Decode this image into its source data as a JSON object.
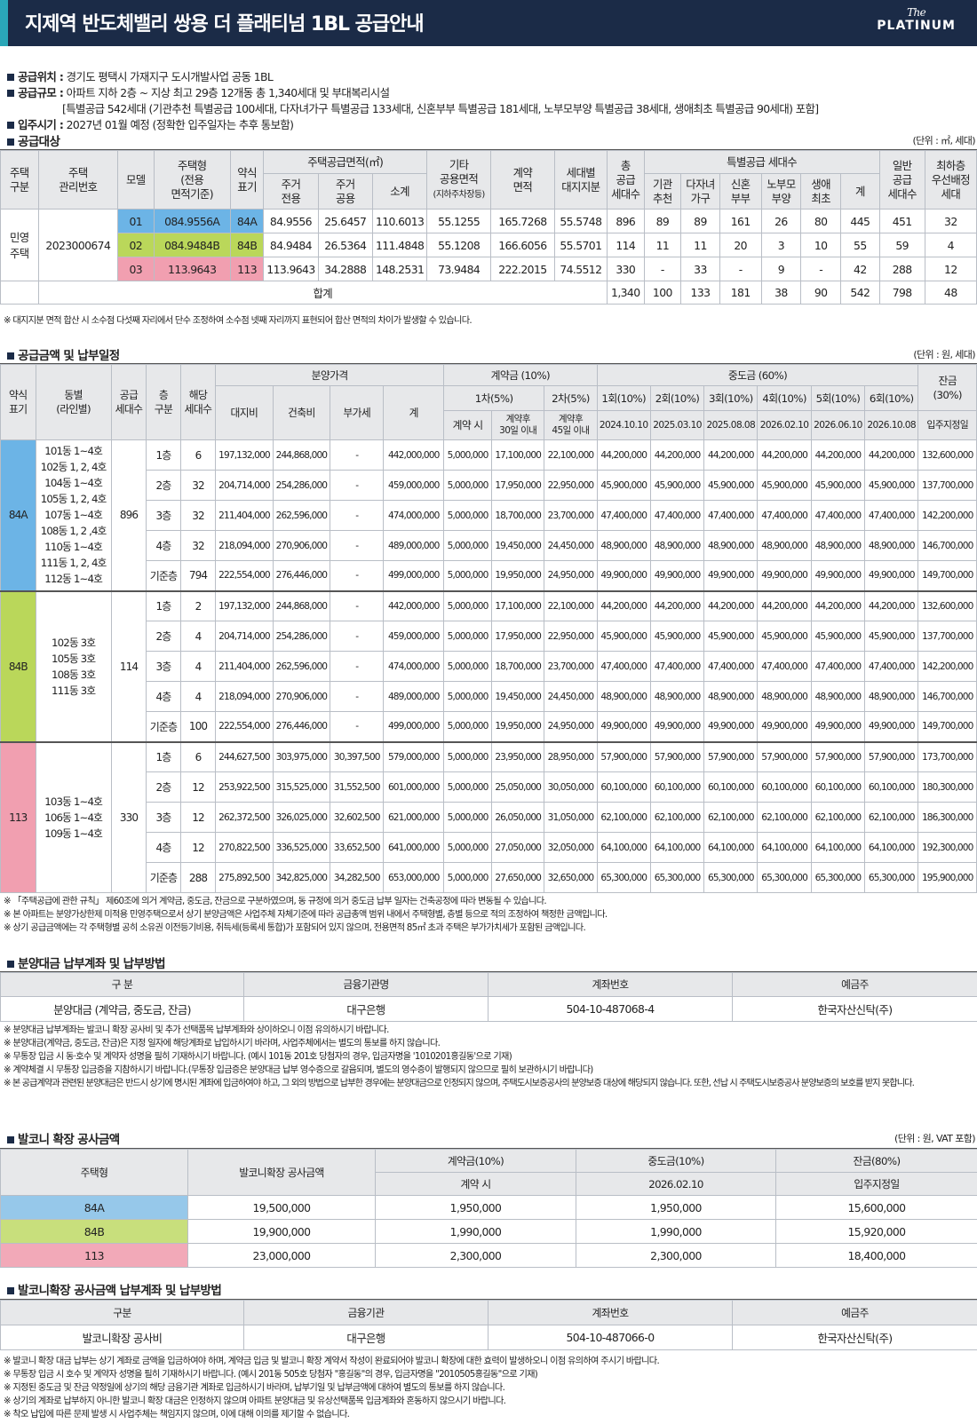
{
  "header": {
    "title": "지제역 반도체밸리 쌍용 더 플래티넘 1BL 공급안내",
    "logo_the": "The",
    "logo_platinum": "PLATINUM"
  },
  "info": {
    "location_label": "공급위치 :",
    "location": "경기도 평택시 가재지구 도시개발사업 공동 1BL",
    "scale_label": "공급규모 :",
    "scale": "아파트 지하 2층 ~ 지상 최고 29층 12개동 총 1,340세대 및 부대복리시설",
    "scale_detail": "[특별공급 542세대 (기관추천 특별공급 100세대, 다자녀가구 특별공급 133세대, 신혼부부 특별공급 181세대, 노부모부양 특별공급 38세대, 생애최초 특별공급 90세대) 포함]",
    "movein_label": "입주시기 :",
    "movein": "2027년 01월 예정 (정확한 입주일자는 추후 통보함)"
  },
  "supply": {
    "title": "공급대상",
    "unit": "(단위 : ㎡, 세대)",
    "headers": {
      "type": "주택\n구분",
      "mgmt": "주택\n관리번호",
      "model": "모델",
      "htype": "주택형\n(전용\n면적기준)",
      "abbr": "약식\n표기",
      "area_group": "주택공급면적(㎡)",
      "area_exclusive": "주거\n전용",
      "area_common": "주거\n공용",
      "area_sub": "소계",
      "other": "기타\n공용면적",
      "other_sub": "(지하주차장등)",
      "contract_area": "계약\n면적",
      "land": "세대별\n대지지분",
      "total": "총\n공급\n세대수",
      "special_group": "특별공급 세대수",
      "sp_inst": "기관\n추천",
      "sp_multi": "다자녀\n가구",
      "sp_newly": "신혼\n부부",
      "sp_parent": "노부모\n부양",
      "sp_first": "생애\n최초",
      "sp_sum": "계",
      "general": "일반\n공급\n세대수",
      "lowest": "최하층\n우선배정\n세대"
    },
    "house_type": "민영\n주택",
    "mgmt_no": "2023000674",
    "rows": [
      {
        "model": "01",
        "htype": "084.9556A",
        "abbr": "84A",
        "ex": "84.9556",
        "cm": "25.6457",
        "sub": "110.6013",
        "other": "55.1255",
        "contract": "165.7268",
        "land": "55.5748",
        "total": "896",
        "inst": "89",
        "multi": "89",
        "newly": "161",
        "parent": "26",
        "first": "80",
        "spsum": "445",
        "general": "451",
        "lowest": "32"
      },
      {
        "model": "02",
        "htype": "084.9484B",
        "abbr": "84B",
        "ex": "84.9484",
        "cm": "26.5364",
        "sub": "111.4848",
        "other": "55.1208",
        "contract": "166.6056",
        "land": "55.5701",
        "total": "114",
        "inst": "11",
        "multi": "11",
        "newly": "20",
        "parent": "3",
        "first": "10",
        "spsum": "55",
        "general": "59",
        "lowest": "4"
      },
      {
        "model": "03",
        "htype": "113.9643",
        "abbr": "113",
        "ex": "113.9643",
        "cm": "34.2888",
        "sub": "148.2531",
        "other": "73.9484",
        "contract": "222.2015",
        "land": "74.5512",
        "total": "330",
        "inst": "-",
        "multi": "33",
        "newly": "-",
        "parent": "9",
        "first": "-",
        "spsum": "42",
        "general": "288",
        "lowest": "12"
      }
    ],
    "sum_label": "합계",
    "sum": {
      "total": "1,340",
      "inst": "100",
      "multi": "133",
      "newly": "181",
      "parent": "38",
      "first": "90",
      "spsum": "542",
      "general": "798",
      "lowest": "48"
    },
    "note": "※ 대지지분 면적 합산 시 소수점 다섯째 자리에서 단수 조정하여 소수점 넷째 자리까지 표현되어 합산 면적의 차이가 발생할 수 있습니다."
  },
  "price": {
    "title": "공급금액 및 납부일정",
    "unit": "(단위 : 원, 세대)",
    "headers": {
      "abbr": "약식\n표기",
      "dong": "동별\n(라인별)",
      "count": "공급\n세대수",
      "floor": "층\n구분",
      "units": "해당\n세대수",
      "sale": "분양가격",
      "land": "대지비",
      "build": "건축비",
      "vat": "부가세",
      "sum": "계",
      "deposit": "계약금 (10%)",
      "dep1": "1차(5%)",
      "dep2": "2차(5%)",
      "dep1a": "계약 시",
      "dep1b": "계약후\n30일 이내",
      "dep2a": "계약후\n45일 이내",
      "mid": "중도금 (60%)",
      "m1": "1회(10%)",
      "m2": "2회(10%)",
      "m3": "3회(10%)",
      "m4": "4회(10%)",
      "m5": "5회(10%)",
      "m6": "6회(10%)",
      "d1": "2024.10.10",
      "d2": "2025.03.10",
      "d3": "2025.08.08",
      "d4": "2026.02.10",
      "d5": "2026.06.10",
      "d6": "2026.10.08",
      "bal": "잔금\n(30%)",
      "bal_date": "입주지정일"
    },
    "groups": [
      {
        "abbr": "84A",
        "dong": "101동 1~4호\n102동 1, 2, 4호\n104동 1~4호\n105동 1, 2, 4호\n107동 1~4호\n108동 1, 2 ,4호\n110동 1~4호\n111동 1, 2, 4호\n112동 1~4호",
        "count": "896",
        "rows": [
          [
            "1층",
            "6",
            "197,132,000",
            "244,868,000",
            "-",
            "442,000,000",
            "5,000,000",
            "17,100,000",
            "22,100,000",
            "44,200,000",
            "44,200,000",
            "44,200,000",
            "44,200,000",
            "44,200,000",
            "44,200,000",
            "132,600,000"
          ],
          [
            "2층",
            "32",
            "204,714,000",
            "254,286,000",
            "-",
            "459,000,000",
            "5,000,000",
            "17,950,000",
            "22,950,000",
            "45,900,000",
            "45,900,000",
            "45,900,000",
            "45,900,000",
            "45,900,000",
            "45,900,000",
            "137,700,000"
          ],
          [
            "3층",
            "32",
            "211,404,000",
            "262,596,000",
            "-",
            "474,000,000",
            "5,000,000",
            "18,700,000",
            "23,700,000",
            "47,400,000",
            "47,400,000",
            "47,400,000",
            "47,400,000",
            "47,400,000",
            "47,400,000",
            "142,200,000"
          ],
          [
            "4층",
            "32",
            "218,094,000",
            "270,906,000",
            "-",
            "489,000,000",
            "5,000,000",
            "19,450,000",
            "24,450,000",
            "48,900,000",
            "48,900,000",
            "48,900,000",
            "48,900,000",
            "48,900,000",
            "48,900,000",
            "146,700,000"
          ],
          [
            "기준층",
            "794",
            "222,554,000",
            "276,446,000",
            "-",
            "499,000,000",
            "5,000,000",
            "19,950,000",
            "24,950,000",
            "49,900,000",
            "49,900,000",
            "49,900,000",
            "49,900,000",
            "49,900,000",
            "49,900,000",
            "149,700,000"
          ]
        ]
      },
      {
        "abbr": "84B",
        "dong": "102동 3호\n105동 3호\n108동 3호\n111동 3호",
        "count": "114",
        "rows": [
          [
            "1층",
            "2",
            "197,132,000",
            "244,868,000",
            "-",
            "442,000,000",
            "5,000,000",
            "17,100,000",
            "22,100,000",
            "44,200,000",
            "44,200,000",
            "44,200,000",
            "44,200,000",
            "44,200,000",
            "44,200,000",
            "132,600,000"
          ],
          [
            "2층",
            "4",
            "204,714,000",
            "254,286,000",
            "-",
            "459,000,000",
            "5,000,000",
            "17,950,000",
            "22,950,000",
            "45,900,000",
            "45,900,000",
            "45,900,000",
            "45,900,000",
            "45,900,000",
            "45,900,000",
            "137,700,000"
          ],
          [
            "3층",
            "4",
            "211,404,000",
            "262,596,000",
            "-",
            "474,000,000",
            "5,000,000",
            "18,700,000",
            "23,700,000",
            "47,400,000",
            "47,400,000",
            "47,400,000",
            "47,400,000",
            "47,400,000",
            "47,400,000",
            "142,200,000"
          ],
          [
            "4층",
            "4",
            "218,094,000",
            "270,906,000",
            "-",
            "489,000,000",
            "5,000,000",
            "19,450,000",
            "24,450,000",
            "48,900,000",
            "48,900,000",
            "48,900,000",
            "48,900,000",
            "48,900,000",
            "48,900,000",
            "146,700,000"
          ],
          [
            "기준층",
            "100",
            "222,554,000",
            "276,446,000",
            "-",
            "499,000,000",
            "5,000,000",
            "19,950,000",
            "24,950,000",
            "49,900,000",
            "49,900,000",
            "49,900,000",
            "49,900,000",
            "49,900,000",
            "49,900,000",
            "149,700,000"
          ]
        ]
      },
      {
        "abbr": "113",
        "dong": "103동 1~4호\n106동 1~4호\n109동 1~4호",
        "count": "330",
        "rows": [
          [
            "1층",
            "6",
            "244,627,500",
            "303,975,000",
            "30,397,500",
            "579,000,000",
            "5,000,000",
            "23,950,000",
            "28,950,000",
            "57,900,000",
            "57,900,000",
            "57,900,000",
            "57,900,000",
            "57,900,000",
            "57,900,000",
            "173,700,000"
          ],
          [
            "2층",
            "12",
            "253,922,500",
            "315,525,000",
            "31,552,500",
            "601,000,000",
            "5,000,000",
            "25,050,000",
            "30,050,000",
            "60,100,000",
            "60,100,000",
            "60,100,000",
            "60,100,000",
            "60,100,000",
            "60,100,000",
            "180,300,000"
          ],
          [
            "3층",
            "12",
            "262,372,500",
            "326,025,000",
            "32,602,500",
            "621,000,000",
            "5,000,000",
            "26,050,000",
            "31,050,000",
            "62,100,000",
            "62,100,000",
            "62,100,000",
            "62,100,000",
            "62,100,000",
            "62,100,000",
            "186,300,000"
          ],
          [
            "4층",
            "12",
            "270,822,500",
            "336,525,000",
            "33,652,500",
            "641,000,000",
            "5,000,000",
            "27,050,000",
            "32,050,000",
            "64,100,000",
            "64,100,000",
            "64,100,000",
            "64,100,000",
            "64,100,000",
            "64,100,000",
            "192,300,000"
          ],
          [
            "기준층",
            "288",
            "275,892,500",
            "342,825,000",
            "34,282,500",
            "653,000,000",
            "5,000,000",
            "27,650,000",
            "32,650,000",
            "65,300,000",
            "65,300,000",
            "65,300,000",
            "65,300,000",
            "65,300,000",
            "65,300,000",
            "195,900,000"
          ]
        ]
      }
    ],
    "notes": [
      "※ 「주택공급에 관한 규칙」 제60조에 의거 계약금, 중도금, 잔금으로 구분하였으며, 동 규정에 의거 중도금 납부 일자는 건축공정에 따라 변동될 수 있습니다.",
      "※ 본 아파트는 분양가상한제 미적용 민영주택으로서 상기 분양금액은 사업주체 자체기준에 따라 공급총액 범위 내에서 주택형별, 층별 등으로 적의 조정하여 책정한 금액입니다.",
      "※ 상기 공급금액에는 각 주택형별 공히 소유권 이전등기비용, 취득세(등록세 통합)가 포함되어 있지 않으며, 전용면적 85㎡ 초과 주택은 부가가치세가 포함된 금액입니다."
    ]
  },
  "account": {
    "title": "분양대금 납부계좌 및 납부방법",
    "headers": [
      "구 분",
      "금융기관명",
      "계좌번호",
      "예금주"
    ],
    "row": [
      "분양대금 (계약금, 중도금, 잔금)",
      "대구은행",
      "504-10-487068-4",
      "한국자산신탁(주)"
    ],
    "notes": [
      "※ 분양대금 납부계좌는 발코니 확장 공사비 및 추가 선택품목 납부계좌와 상이하오니 이점 유의하시기 바랍니다.",
      "※ 분양대금(계약금, 중도금, 잔금)은 지정 일자에 해당계좌로 납입하시기 바라며, 사업주체에서는 별도의 통보를 하지 않습니다.",
      "※ 무통장 입금 시 동·호수 및 계약자 성명을 필히 기재하시기 바랍니다. (예시 101동 201호 당첨자의 경우, 입금자명을 '1010201홍길동'으로 기재)",
      "※ 계약체결 시 무통장 입금증을 지참하시기 바랍니다.(무통장 입금증은 분양대금 납부 영수증으로 갈음되며, 별도의 영수증이 발행되지 않으므로 필히 보관하시기 바랍니다)",
      "※ 본 공급계약과 관련된 분양대금은 반드시 상기에 명시된 계좌에 입금하여야 하고, 그 외의 방법으로 납부한 경우에는 분양대금으로 인정되지 않으며, 주택도시보증공사의 분양보증 대상에 해당되지 않습니다. 또한, 선납 시 주택도시보증공사 분양보증의 보호를 받지 못합니다."
    ]
  },
  "balcony": {
    "title": "발코니 확장 공사금액",
    "unit": "(단위 : 원, VAT 포함)",
    "headers": {
      "type": "주택형",
      "cost": "발코니확장 공사금액",
      "dep": "계약금(10%)",
      "dep_sub": "계약 시",
      "mid": "중도금(10%)",
      "mid_sub": "2026.02.10",
      "bal": "잔금(80%)",
      "bal_sub": "입주지정일"
    },
    "rows": [
      {
        "type": "84A",
        "cost": "19,500,000",
        "dep": "1,950,000",
        "mid": "1,950,000",
        "bal": "15,600,000"
      },
      {
        "type": "84B",
        "cost": "19,900,000",
        "dep": "1,990,000",
        "mid": "1,990,000",
        "bal": "15,920,000"
      },
      {
        "type": "113",
        "cost": "23,000,000",
        "dep": "2,300,000",
        "mid": "2,300,000",
        "bal": "18,400,000"
      }
    ]
  },
  "balcony_account": {
    "title": "발코니확장 공사금액 납부계좌 및 납부방법",
    "headers": [
      "구분",
      "금융기관",
      "계좌번호",
      "예금주"
    ],
    "row": [
      "발코니확장 공사비",
      "대구은행",
      "504-10-487066-0",
      "한국자산신탁(주)"
    ],
    "notes": [
      "※ 발코니 확장 대금 납부는 상기 계좌로 금액을 입금하여야 하며, 계약금 입금 및 발코니 확장 계약서 작성이 완료되어야 발코니 확장에 대한 효력이 발생하오니 이점 유의하여 주시기 바랍니다.",
      "※ 무통장 입금 시 호수 및 계약자 성명을 필히 기재하시기 바랍니다. (예시 201동 505호 당첨자 \"홍길동\"의 경우, 입금자명을 \"2010505홍길동\"으로 기재)",
      "※ 지정된 중도금 및 잔금 약정일에 상기의 해당 금융기관 계좌로 입금하시기 바라며, 납부기일 및 납부금액에 대하여 별도의 통보를 하지 않습니다.",
      "※ 상기의 계좌로 납부하지 아니한 발코니 확장 대금은 인정하지 않으며 아파트 분양대금 및 유상선택품목 입금계좌와 혼동하지 않으시기 바랍니다.",
      "※ 착오 납입에 따른 문제 발생 시 사업주체는 책임지지 않으며, 이에 대해 이의를 제기할 수 없습니다."
    ]
  },
  "colors": {
    "header_bg": "#1b2b47",
    "accent": "#2aa7b8",
    "c84A": "#6cb4e6",
    "c84B": "#bad75a",
    "c113": "#f19fb0"
  }
}
